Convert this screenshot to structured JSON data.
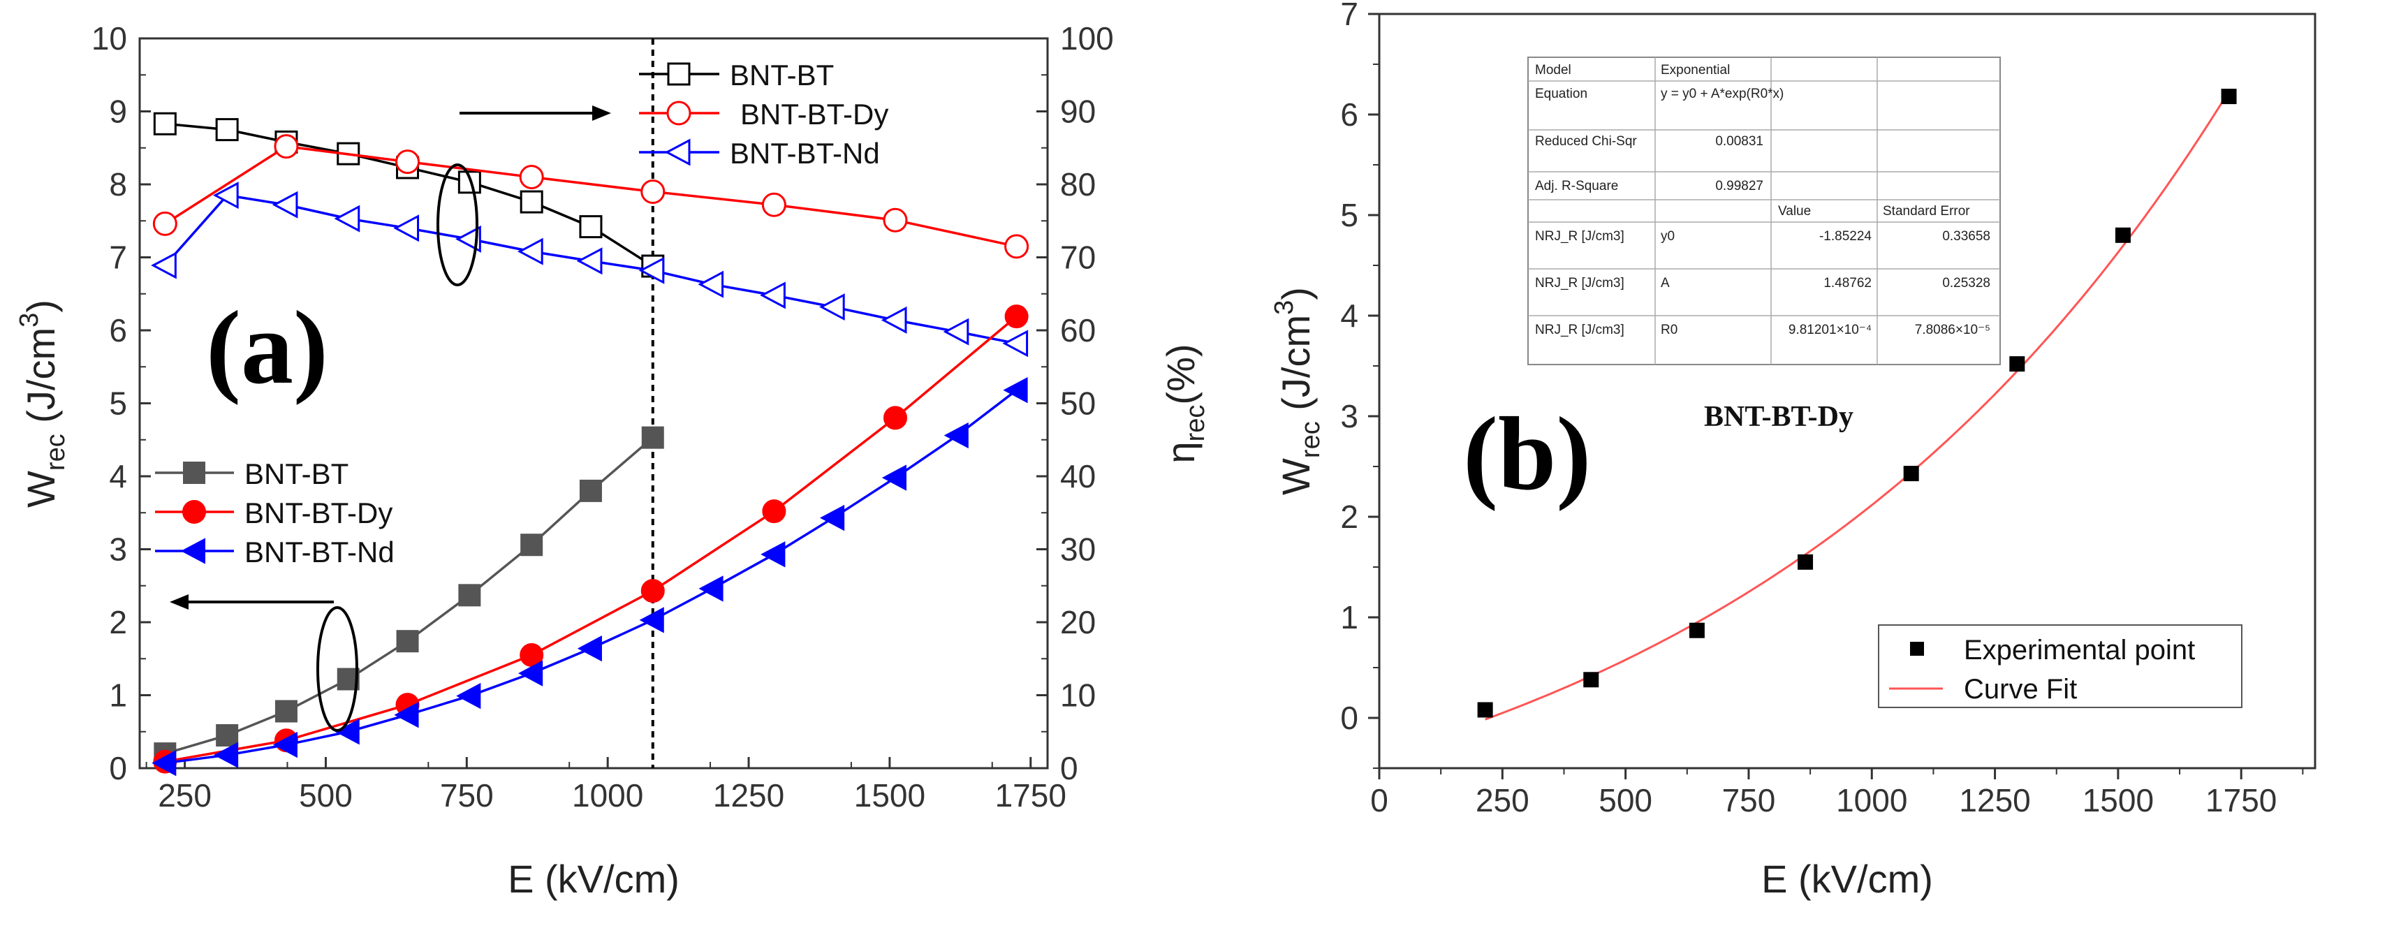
{
  "chart_data": [
    {
      "id": "a",
      "type": "line",
      "panel_label": "(a)",
      "x": [
        215,
        325,
        430,
        540,
        645,
        755,
        865,
        970,
        1080,
        1185,
        1295,
        1400,
        1510,
        1620,
        1725
      ],
      "xlim": [
        170,
        1780
      ],
      "xticks": [
        "250",
        "500",
        "750",
        "1000",
        "1250",
        "1500",
        "1750"
      ],
      "xlabel": "E (kV/cm)",
      "left_axis": {
        "label_main": "W",
        "label_sub": "rec",
        "label_tail": " (J/cm",
        "label_sup": "3",
        "label_end": ")",
        "ylim": [
          0,
          10
        ],
        "ticks": [
          "0",
          "1",
          "2",
          "3",
          "4",
          "5",
          "6",
          "7",
          "8",
          "9",
          "10"
        ]
      },
      "right_axis": {
        "label_main": "η",
        "label_sub": "rec",
        "label_tail": "(%)",
        "ylim": [
          0,
          100
        ],
        "ticks": [
          "0",
          "10",
          "20",
          "30",
          "40",
          "50",
          "60",
          "70",
          "80",
          "90",
          "100"
        ]
      },
      "series_w": [
        {
          "name": "BNT-BT",
          "color": "#555555",
          "marker": "square",
          "x": [
            215,
            325,
            430,
            540,
            645,
            755,
            865,
            970,
            1080
          ],
          "values": [
            0.2,
            0.45,
            0.78,
            1.22,
            1.74,
            2.37,
            3.06,
            3.8,
            4.53
          ]
        },
        {
          "name": "BNT-BT-Dy",
          "color": "#ff0000",
          "marker": "circle",
          "x": [
            215,
            430,
            645,
            865,
            1080,
            1295,
            1510,
            1725
          ],
          "values": [
            0.09,
            0.38,
            0.87,
            1.55,
            2.43,
            3.52,
            4.8,
            6.19
          ]
        },
        {
          "name": "BNT-BT-Nd",
          "color": "#0000ff",
          "marker": "triangle-left",
          "x": [
            215,
            325,
            430,
            540,
            645,
            755,
            865,
            970,
            1080,
            1185,
            1295,
            1400,
            1510,
            1620,
            1725
          ],
          "values": [
            0.07,
            0.18,
            0.32,
            0.5,
            0.73,
            0.99,
            1.3,
            1.64,
            2.03,
            2.46,
            2.93,
            3.43,
            3.98,
            4.56,
            5.18
          ]
        }
      ],
      "series_eta": [
        {
          "name": "BNT-BT",
          "color": "#000000",
          "marker": "square-open",
          "x": [
            215,
            325,
            430,
            540,
            645,
            755,
            865,
            970,
            1080
          ],
          "values": [
            88.3,
            87.5,
            85.8,
            84.2,
            82.3,
            80.3,
            77.6,
            74.2,
            68.8
          ]
        },
        {
          "name": "BNT-BT-Dy",
          "color": "#ff0000",
          "marker": "circle-open",
          "x": [
            215,
            430,
            645,
            865,
            1080,
            1295,
            1510,
            1725
          ],
          "values": [
            74.6,
            85.2,
            83.1,
            81.0,
            79.0,
            77.2,
            75.1,
            71.5
          ]
        },
        {
          "name": "BNT-BT-Nd",
          "color": "#0000ff",
          "marker": "triangle-left-open",
          "x": [
            215,
            325,
            430,
            540,
            645,
            755,
            865,
            970,
            1080,
            1185,
            1295,
            1400,
            1510,
            1620,
            1725
          ],
          "values": [
            68.9,
            78.5,
            77.2,
            75.3,
            74.0,
            72.5,
            70.8,
            69.5,
            68.2,
            66.3,
            64.8,
            63.2,
            61.4,
            59.8,
            58.2
          ]
        }
      ],
      "vertical_line_x": 1080,
      "legend_eta_position": "top-middle",
      "legend_w_position": "middle-left"
    },
    {
      "id": "b",
      "type": "scatter",
      "panel_label": "(b)",
      "subtitle": "BNT-BT-Dy",
      "xlabel": "E (kV/cm)",
      "ylabel_main": "W",
      "ylabel_sub": "rec",
      "ylabel_tail": " (J/cm",
      "ylabel_sup": "3",
      "ylabel_end": ")",
      "xlim": [
        0,
        1900
      ],
      "ylim": [
        -0.5,
        7
      ],
      "xticks": [
        "0",
        "250",
        "500",
        "750",
        "1000",
        "1250",
        "1500",
        "1750"
      ],
      "yticks": [
        "0",
        "1",
        "2",
        "3",
        "4",
        "5",
        "6",
        "7"
      ],
      "points": {
        "name": "Experimental point",
        "x": [
          215,
          430,
          645,
          865,
          1080,
          1295,
          1510,
          1725
        ],
        "y": [
          0.08,
          0.38,
          0.87,
          1.55,
          2.43,
          3.52,
          4.8,
          6.18
        ]
      },
      "fit": {
        "name": "Curve Fit",
        "color": "#ff5555",
        "y0": -1.85224,
        "A": 1.48762,
        "R0": 0.000981201
      },
      "legend_position": "bottom-right",
      "fit_table": {
        "rows": [
          [
            "Model",
            "Exponential",
            "",
            ""
          ],
          [
            "Equation",
            "y = y0 + A*exp(R0*x)",
            "",
            ""
          ],
          [
            "Reduced Chi-Sqr",
            "0.00831",
            "",
            ""
          ],
          [
            "Adj. R-Square",
            "0.99827",
            "",
            ""
          ],
          [
            "",
            "",
            "Value",
            "Standard Error"
          ],
          [
            "NRJ_R [J/cm3]",
            "y0",
            "-1.85224",
            "0.33658"
          ],
          [
            "NRJ_R [J/cm3]",
            "A",
            "1.48762",
            "0.25328"
          ],
          [
            "NRJ_R [J/cm3]",
            "R0",
            "9.81201×10⁻⁴",
            "7.8086×10⁻⁵"
          ]
        ]
      }
    }
  ]
}
